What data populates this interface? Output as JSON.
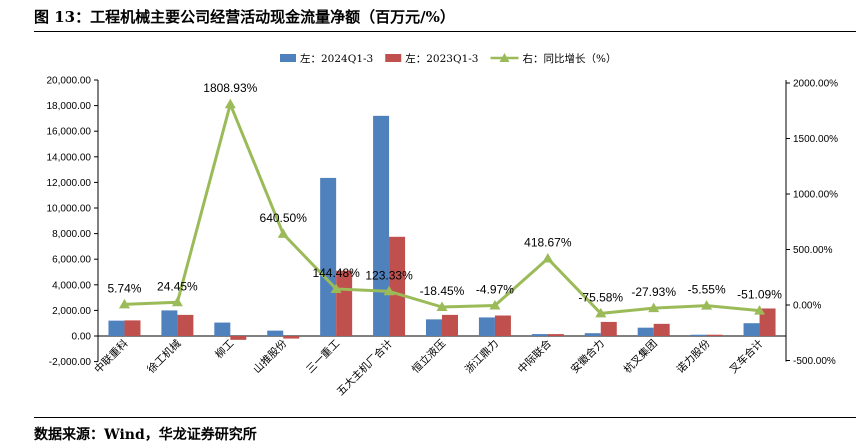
{
  "figure": {
    "title": "图 13：工程机械主要公司经营活动现金流量净额（百万元/%）",
    "source": "数据来源：Wind，华龙证券研究所"
  },
  "chart_data": {
    "type": "bar",
    "categories": [
      "中联重科",
      "徐工机械",
      "柳工",
      "山推股份",
      "三一重工",
      "五大主机厂合计",
      "恒立液压",
      "浙江鼎力",
      "中际联合",
      "安徽合力",
      "杭叉集团",
      "诺力股份",
      "叉车合计"
    ],
    "series": [
      {
        "name": "左：2024Q1-3",
        "type": "bar",
        "axis": "left",
        "color": "#4f81bd",
        "values": [
          1200,
          2000,
          1050,
          420,
          12350,
          17200,
          1300,
          1450,
          150,
          220,
          650,
          100,
          1000
        ]
      },
      {
        "name": "左：2023Q1-3",
        "type": "bar",
        "axis": "left",
        "color": "#c0504d",
        "values": [
          1220,
          1650,
          -300,
          -200,
          5100,
          7750,
          1650,
          1600,
          150,
          1100,
          950,
          100,
          2150
        ]
      },
      {
        "name": "右：同比增长（%）",
        "type": "line",
        "axis": "right",
        "color": "#9bbb59",
        "values": [
          5.74,
          24.45,
          1808.93,
          640.5,
          144.48,
          123.33,
          -18.45,
          -4.97,
          418.67,
          -75.58,
          -27.93,
          -5.55,
          -51.09
        ],
        "labels": [
          "5.74%",
          "24.45%",
          "1808.93%",
          "640.50%",
          "144.48%",
          "123.33%",
          "-18.45%",
          "-4.97%",
          "418.67%",
          "-75.58%",
          "-27.93%",
          "-5.55%",
          "-51.09%"
        ]
      }
    ],
    "left_axis": {
      "min": -2000,
      "max": 20000,
      "step": 2000,
      "tick_labels": [
        "-2,000.00",
        "0.00",
        "2,000.00",
        "4,000.00",
        "6,000.00",
        "8,000.00",
        "10,000.00",
        "12,000.00",
        "14,000.00",
        "16,000.00",
        "18,000.00",
        "20,000.00"
      ]
    },
    "right_axis": {
      "min": -500,
      "max": 2000,
      "step": 500,
      "tick_labels": [
        "-500.00%",
        "0.00%",
        "500.00%",
        "1000.00%",
        "1500.00%",
        "2000.00%"
      ]
    },
    "legend_position": "top-center",
    "grid": false
  }
}
